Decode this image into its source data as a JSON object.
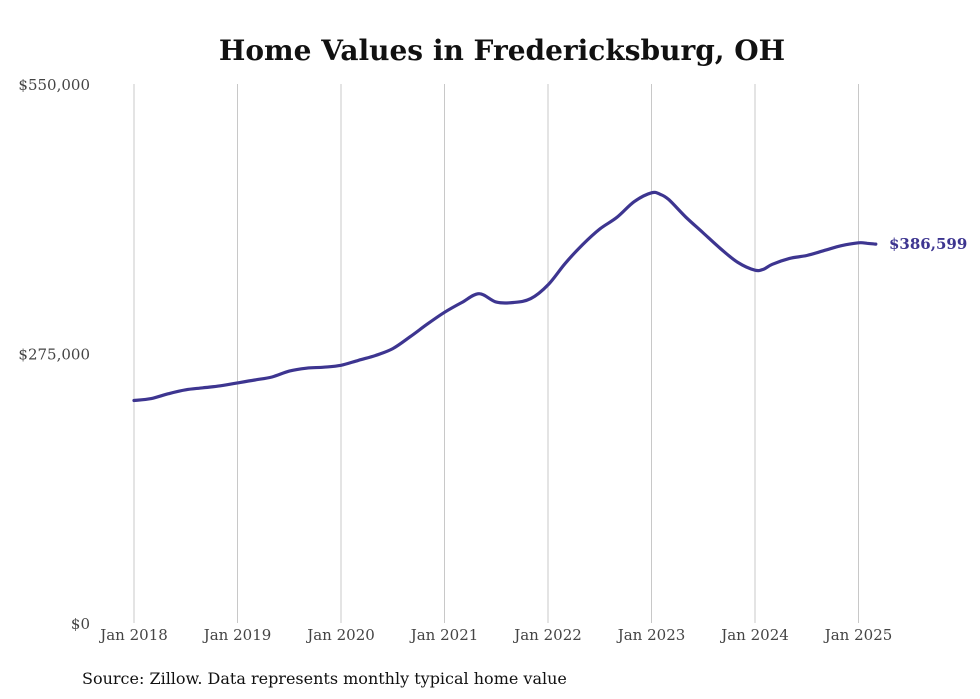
{
  "chart_data": {
    "type": "line",
    "title": "Home Values in Fredericksburg, OH",
    "xlabel": "",
    "ylabel": "",
    "y_ticks": [
      "$0",
      "$275,000",
      "$550,000"
    ],
    "ylim": [
      0,
      550000
    ],
    "x_ticks": [
      "Jan 2018",
      "Jan 2019",
      "Jan 2020",
      "Jan 2021",
      "Jan 2022",
      "Jan 2023",
      "Jan 2024",
      "Jan 2025"
    ],
    "grid": "vertical",
    "line_color": "#3d3590",
    "end_label": "$386,599",
    "series": [
      {
        "x": [
          "2018-01",
          "2018-03",
          "2018-05",
          "2018-07",
          "2018-09",
          "2018-11",
          "2019-01",
          "2019-03",
          "2019-05",
          "2019-07",
          "2019-09",
          "2019-11",
          "2020-01",
          "2020-03",
          "2020-05",
          "2020-07",
          "2020-09",
          "2020-11",
          "2021-01",
          "2021-03",
          "2021-05",
          "2021-07",
          "2021-09",
          "2021-11",
          "2022-01",
          "2022-03",
          "2022-05",
          "2022-07",
          "2022-09",
          "2022-11",
          "2023-01",
          "2023-02",
          "2023-03",
          "2023-05",
          "2023-07",
          "2023-09",
          "2023-11",
          "2024-01",
          "2024-02",
          "2024-03",
          "2024-05",
          "2024-07",
          "2024-09",
          "2024-11",
          "2025-01",
          "2025-02",
          "2025-03"
        ],
        "values": [
          227000,
          229000,
          234000,
          238000,
          240000,
          242000,
          245000,
          248000,
          251000,
          257000,
          260000,
          261000,
          263000,
          268000,
          273000,
          280000,
          292000,
          305000,
          317000,
          327000,
          336000,
          327500,
          327000,
          331000,
          345000,
          367000,
          386000,
          402000,
          414000,
          430000,
          439000,
          437500,
          432000,
          414000,
          398000,
          382000,
          368000,
          360000,
          361000,
          366000,
          372000,
          375000,
          380000,
          385000,
          388000,
          387500,
          386599
        ]
      }
    ],
    "source": "Source: Zillow. Data represents monthly typical home value"
  }
}
